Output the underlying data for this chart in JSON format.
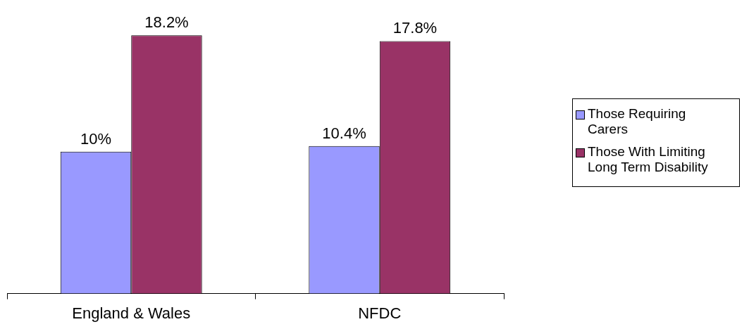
{
  "chart_data": {
    "type": "bar",
    "categories": [
      "England & Wales",
      "NFDC"
    ],
    "series": [
      {
        "name": "Those Requiring Carers",
        "color": "#9999ff",
        "values": [
          10,
          10.4
        ],
        "value_labels": [
          "10%",
          "10.4%"
        ]
      },
      {
        "name": "Those With Limiting Long Term Disability",
        "color": "#993366",
        "values": [
          18.2,
          17.8
        ],
        "value_labels": [
          "18.2%",
          "17.8%"
        ]
      }
    ],
    "grid": false,
    "legend": "right"
  }
}
